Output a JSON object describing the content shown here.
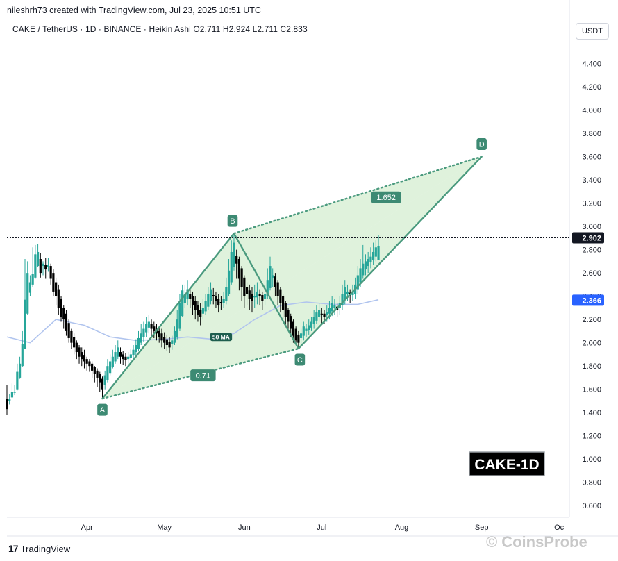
{
  "header": {
    "credit": "nileshrh73 created with TradingView.com, Jul 23, 2025 10:51 UTC",
    "symbol_line": "CAKE / TetherUS · 1D · BINANCE · Heikin Ashi  O2.711  H2.924  L2.711  C2.833"
  },
  "currency_button": "USDT",
  "footer": {
    "brand": "TradingView",
    "watermark": "CoinsProbe"
  },
  "colors": {
    "bull": "#26a69a",
    "bear": "#000000",
    "pattern": "#4a9a7e",
    "pattern_fill": "#c9e9c4",
    "ma": "#b0c4ee",
    "badge": "#3d8a73"
  },
  "chart_data": {
    "type": "candlestick",
    "title": "CAKE-1D",
    "ylim": [
      0.5,
      4.6
    ],
    "y_ticks": [
      "4.400",
      "4.200",
      "4.000",
      "3.800",
      "3.600",
      "3.400",
      "3.200",
      "3.000",
      "2.800",
      "2.600",
      "2.400",
      "2.200",
      "2.000",
      "1.800",
      "1.600",
      "1.400",
      "1.200",
      "1.000",
      "0.800",
      "0.600"
    ],
    "x_ticks": [
      "Apr",
      "May",
      "Jun",
      "Jul",
      "Aug",
      "Sep",
      "Oc"
    ],
    "x_tick_dates": [
      "2025-04-01",
      "2025-05-01",
      "2025-06-01",
      "2025-07-01",
      "2025-08-01",
      "2025-09-01",
      "2025-10-01"
    ],
    "x_range": [
      "2025-03-01",
      "2025-10-05"
    ],
    "last_price": 2.902,
    "ma_value": 2.366,
    "ma_label": "50 MA",
    "pattern": {
      "points": [
        {
          "label": "A",
          "date": "2025-04-07",
          "price": 1.52
        },
        {
          "label": "B",
          "date": "2025-05-28",
          "price": 2.94
        },
        {
          "label": "C",
          "date": "2025-06-22",
          "price": 1.95
        },
        {
          "label": "D",
          "date": "2025-09-01",
          "price": 3.6
        }
      ],
      "ratios": [
        {
          "label": "0.71",
          "date": "2025-05-16",
          "price": 1.72
        },
        {
          "label": "1.652",
          "date": "2025-07-26",
          "price": 3.25
        }
      ]
    },
    "ma_series": [
      [
        "2025-03-01",
        2.05
      ],
      [
        "2025-03-10",
        2.0
      ],
      [
        "2025-03-20",
        2.2
      ],
      [
        "2025-03-31",
        2.15
      ],
      [
        "2025-04-10",
        2.05
      ],
      [
        "2025-04-20",
        2.02
      ],
      [
        "2025-05-01",
        2.03
      ],
      [
        "2025-05-10",
        2.05
      ],
      [
        "2025-05-20",
        2.03
      ],
      [
        "2025-05-28",
        2.08
      ],
      [
        "2025-06-05",
        2.2
      ],
      [
        "2025-06-15",
        2.32
      ],
      [
        "2025-06-25",
        2.35
      ],
      [
        "2025-07-05",
        2.33
      ],
      [
        "2025-07-15",
        2.33
      ],
      [
        "2025-07-23",
        2.37
      ]
    ],
    "candles": [
      [
        "2025-03-01",
        1.52,
        1.43,
        1.64,
        1.38
      ],
      [
        "2025-03-02",
        1.5,
        1.52,
        1.56,
        1.47
      ],
      [
        "2025-03-03",
        1.53,
        1.58,
        1.65,
        1.53
      ],
      [
        "2025-03-04",
        1.57,
        1.58,
        1.64,
        1.55
      ],
      [
        "2025-03-05",
        1.6,
        1.75,
        1.82,
        1.59
      ],
      [
        "2025-03-06",
        1.7,
        1.82,
        1.88,
        1.69
      ],
      [
        "2025-03-07",
        1.8,
        1.99,
        2.1,
        1.79
      ],
      [
        "2025-03-08",
        1.95,
        2.37,
        2.72,
        1.95
      ],
      [
        "2025-03-09",
        2.25,
        2.6,
        2.7,
        2.24
      ],
      [
        "2025-03-10",
        2.43,
        2.52,
        2.58,
        2.4
      ],
      [
        "2025-03-11",
        2.5,
        2.59,
        2.82,
        2.48
      ],
      [
        "2025-03-12",
        2.56,
        2.76,
        2.84,
        2.55
      ],
      [
        "2025-03-13",
        2.66,
        2.78,
        2.85,
        2.65
      ],
      [
        "2025-03-14",
        2.72,
        2.6,
        2.77,
        2.56
      ],
      [
        "2025-03-15",
        2.66,
        2.68,
        2.7,
        2.58
      ],
      [
        "2025-03-16",
        2.67,
        2.63,
        2.73,
        2.55
      ],
      [
        "2025-03-17",
        2.65,
        2.67,
        2.73,
        2.61
      ],
      [
        "2025-03-18",
        2.66,
        2.55,
        2.68,
        2.5
      ],
      [
        "2025-03-19",
        2.6,
        2.44,
        2.63,
        2.4
      ],
      [
        "2025-03-20",
        2.52,
        2.4,
        2.56,
        2.32
      ],
      [
        "2025-03-21",
        2.46,
        2.3,
        2.5,
        2.24
      ],
      [
        "2025-03-22",
        2.38,
        2.22,
        2.4,
        2.18
      ],
      [
        "2025-03-23",
        2.3,
        2.2,
        2.32,
        2.12
      ],
      [
        "2025-03-24",
        2.25,
        2.1,
        2.28,
        2.06
      ],
      [
        "2025-03-25",
        2.17,
        2.04,
        2.2,
        2.0
      ],
      [
        "2025-03-26",
        2.1,
        2.0,
        2.12,
        1.95
      ],
      [
        "2025-03-27",
        2.05,
        1.96,
        2.08,
        1.9
      ],
      [
        "2025-03-28",
        2.0,
        1.92,
        2.02,
        1.86
      ],
      [
        "2025-03-29",
        1.96,
        1.88,
        1.98,
        1.82
      ],
      [
        "2025-03-30",
        1.92,
        1.86,
        1.96,
        1.8
      ],
      [
        "2025-03-31",
        1.89,
        1.84,
        1.94,
        1.78
      ],
      [
        "2025-04-01",
        1.86,
        1.82,
        1.88,
        1.76
      ],
      [
        "2025-04-02",
        1.84,
        1.8,
        1.86,
        1.75
      ],
      [
        "2025-04-03",
        1.82,
        1.76,
        1.84,
        1.7
      ],
      [
        "2025-04-04",
        1.79,
        1.73,
        1.8,
        1.66
      ],
      [
        "2025-04-05",
        1.76,
        1.7,
        1.78,
        1.62
      ],
      [
        "2025-04-06",
        1.73,
        1.66,
        1.75,
        1.58
      ],
      [
        "2025-04-07",
        1.69,
        1.6,
        1.71,
        1.52
      ],
      [
        "2025-04-08",
        1.64,
        1.72,
        1.76,
        1.6
      ],
      [
        "2025-04-09",
        1.68,
        1.8,
        1.86,
        1.66
      ],
      [
        "2025-04-10",
        1.74,
        1.84,
        1.9,
        1.72
      ],
      [
        "2025-04-11",
        1.79,
        1.88,
        1.94,
        1.78
      ],
      [
        "2025-04-12",
        1.84,
        1.92,
        1.98,
        1.82
      ],
      [
        "2025-04-13",
        1.88,
        1.96,
        2.02,
        1.86
      ],
      [
        "2025-04-14",
        1.92,
        1.88,
        1.96,
        1.82
      ],
      [
        "2025-04-15",
        1.9,
        1.86,
        1.93,
        1.81
      ],
      [
        "2025-04-16",
        1.88,
        1.85,
        1.91,
        1.8
      ],
      [
        "2025-04-17",
        1.86,
        1.88,
        1.92,
        1.82
      ],
      [
        "2025-04-18",
        1.87,
        1.9,
        1.95,
        1.84
      ],
      [
        "2025-04-19",
        1.89,
        1.94,
        1.98,
        1.86
      ],
      [
        "2025-04-20",
        1.92,
        1.98,
        2.03,
        1.89
      ],
      [
        "2025-04-21",
        1.95,
        2.04,
        2.1,
        1.93
      ],
      [
        "2025-04-22",
        2.0,
        2.08,
        2.16,
        1.98
      ],
      [
        "2025-04-23",
        2.05,
        2.12,
        2.18,
        2.01
      ],
      [
        "2025-04-24",
        2.09,
        2.16,
        2.22,
        2.05
      ],
      [
        "2025-04-25",
        2.13,
        2.18,
        2.24,
        2.08
      ],
      [
        "2025-04-26",
        2.16,
        2.12,
        2.2,
        2.06
      ],
      [
        "2025-04-27",
        2.14,
        2.1,
        2.18,
        2.04
      ],
      [
        "2025-04-28",
        2.12,
        2.08,
        2.16,
        2.02
      ],
      [
        "2025-04-29",
        2.1,
        2.05,
        2.13,
        2.0
      ],
      [
        "2025-04-30",
        2.08,
        2.02,
        2.12,
        1.96
      ],
      [
        "2025-05-01",
        2.05,
        2.0,
        2.09,
        1.95
      ],
      [
        "2025-05-02",
        2.03,
        1.98,
        2.07,
        1.93
      ],
      [
        "2025-05-03",
        2.01,
        1.96,
        2.05,
        1.91
      ],
      [
        "2025-05-04",
        1.99,
        2.02,
        2.06,
        1.94
      ],
      [
        "2025-05-05",
        2.0,
        2.1,
        2.14,
        1.98
      ],
      [
        "2025-05-06",
        2.05,
        2.2,
        2.28,
        2.03
      ],
      [
        "2025-05-07",
        2.12,
        2.34,
        2.42,
        2.1
      ],
      [
        "2025-05-08",
        2.23,
        2.45,
        2.5,
        2.22
      ],
      [
        "2025-05-09",
        2.34,
        2.42,
        2.5,
        2.3
      ],
      [
        "2025-05-10",
        2.38,
        2.46,
        2.54,
        2.32
      ],
      [
        "2025-05-11",
        2.42,
        2.38,
        2.48,
        2.3
      ],
      [
        "2025-05-12",
        2.4,
        2.32,
        2.44,
        2.24
      ],
      [
        "2025-05-13",
        2.36,
        2.28,
        2.4,
        2.2
      ],
      [
        "2025-05-14",
        2.32,
        2.24,
        2.36,
        2.18
      ],
      [
        "2025-05-15",
        2.28,
        2.22,
        2.34,
        2.15
      ],
      [
        "2025-05-16",
        2.25,
        2.3,
        2.38,
        2.2
      ],
      [
        "2025-05-17",
        2.27,
        2.36,
        2.42,
        2.24
      ],
      [
        "2025-05-18",
        2.31,
        2.42,
        2.48,
        2.28
      ],
      [
        "2025-05-19",
        2.36,
        2.46,
        2.52,
        2.33
      ],
      [
        "2025-05-20",
        2.41,
        2.4,
        2.47,
        2.33
      ],
      [
        "2025-05-21",
        2.4,
        2.36,
        2.44,
        2.3
      ],
      [
        "2025-05-22",
        2.38,
        2.32,
        2.42,
        2.26
      ],
      [
        "2025-05-23",
        2.35,
        2.34,
        2.4,
        2.28
      ],
      [
        "2025-05-24",
        2.34,
        2.38,
        2.44,
        2.3
      ],
      [
        "2025-05-25",
        2.36,
        2.48,
        2.56,
        2.33
      ],
      [
        "2025-05-26",
        2.42,
        2.62,
        2.72,
        2.4
      ],
      [
        "2025-05-27",
        2.52,
        2.78,
        2.88,
        2.5
      ],
      [
        "2025-05-28",
        2.65,
        2.86,
        2.94,
        2.62
      ],
      [
        "2025-05-29",
        2.75,
        2.68,
        2.8,
        2.55
      ],
      [
        "2025-05-30",
        2.72,
        2.55,
        2.74,
        2.45
      ],
      [
        "2025-05-31",
        2.64,
        2.48,
        2.66,
        2.36
      ],
      [
        "2025-06-01",
        2.56,
        2.4,
        2.58,
        2.3
      ],
      [
        "2025-06-02",
        2.48,
        2.42,
        2.52,
        2.32
      ],
      [
        "2025-06-03",
        2.45,
        2.38,
        2.5,
        2.28
      ],
      [
        "2025-06-04",
        2.42,
        2.36,
        2.48,
        2.26
      ],
      [
        "2025-06-05",
        2.39,
        2.4,
        2.5,
        2.3
      ],
      [
        "2025-06-06",
        2.39,
        2.44,
        2.52,
        2.33
      ],
      [
        "2025-06-07",
        2.42,
        2.4,
        2.46,
        2.32
      ],
      [
        "2025-06-08",
        2.41,
        2.36,
        2.44,
        2.28
      ],
      [
        "2025-06-09",
        2.38,
        2.42,
        2.5,
        2.32
      ],
      [
        "2025-06-10",
        2.4,
        2.54,
        2.64,
        2.38
      ],
      [
        "2025-06-11",
        2.47,
        2.66,
        2.74,
        2.45
      ],
      [
        "2025-06-12",
        2.56,
        2.58,
        2.64,
        2.48
      ],
      [
        "2025-06-13",
        2.57,
        2.48,
        2.6,
        2.4
      ],
      [
        "2025-06-14",
        2.52,
        2.4,
        2.54,
        2.32
      ],
      [
        "2025-06-15",
        2.46,
        2.34,
        2.48,
        2.26
      ],
      [
        "2025-06-16",
        2.4,
        2.28,
        2.42,
        2.2
      ],
      [
        "2025-06-17",
        2.34,
        2.22,
        2.36,
        2.14
      ],
      [
        "2025-06-18",
        2.28,
        2.18,
        2.3,
        2.1
      ],
      [
        "2025-06-19",
        2.23,
        2.12,
        2.25,
        2.05
      ],
      [
        "2025-06-20",
        2.18,
        2.06,
        2.2,
        2.0
      ],
      [
        "2025-06-21",
        2.12,
        2.02,
        2.14,
        1.98
      ],
      [
        "2025-06-22",
        2.07,
        2.0,
        2.1,
        1.95
      ],
      [
        "2025-06-23",
        2.04,
        2.08,
        2.12,
        1.98
      ],
      [
        "2025-06-24",
        2.06,
        2.14,
        2.18,
        2.02
      ],
      [
        "2025-06-25",
        2.1,
        2.12,
        2.16,
        2.05
      ],
      [
        "2025-06-26",
        2.11,
        2.15,
        2.2,
        2.07
      ],
      [
        "2025-06-27",
        2.13,
        2.18,
        2.22,
        2.1
      ],
      [
        "2025-06-28",
        2.16,
        2.22,
        2.28,
        2.12
      ],
      [
        "2025-06-29",
        2.19,
        2.26,
        2.32,
        2.16
      ],
      [
        "2025-06-30",
        2.22,
        2.28,
        2.34,
        2.18
      ],
      [
        "2025-07-01",
        2.25,
        2.24,
        2.3,
        2.16
      ],
      [
        "2025-07-02",
        2.25,
        2.22,
        2.28,
        2.16
      ],
      [
        "2025-07-03",
        2.24,
        2.26,
        2.32,
        2.18
      ],
      [
        "2025-07-04",
        2.25,
        2.3,
        2.36,
        2.2
      ],
      [
        "2025-07-05",
        2.27,
        2.34,
        2.4,
        2.23
      ],
      [
        "2025-07-06",
        2.3,
        2.32,
        2.38,
        2.24
      ],
      [
        "2025-07-07",
        2.31,
        2.28,
        2.34,
        2.22
      ],
      [
        "2025-07-08",
        2.3,
        2.34,
        2.4,
        2.24
      ],
      [
        "2025-07-09",
        2.32,
        2.42,
        2.5,
        2.28
      ],
      [
        "2025-07-10",
        2.37,
        2.48,
        2.54,
        2.33
      ],
      [
        "2025-07-11",
        2.42,
        2.44,
        2.5,
        2.36
      ],
      [
        "2025-07-12",
        2.43,
        2.4,
        2.46,
        2.34
      ],
      [
        "2025-07-13",
        2.41,
        2.44,
        2.5,
        2.36
      ],
      [
        "2025-07-14",
        2.42,
        2.5,
        2.56,
        2.38
      ],
      [
        "2025-07-15",
        2.46,
        2.58,
        2.66,
        2.42
      ],
      [
        "2025-07-16",
        2.52,
        2.64,
        2.72,
        2.48
      ],
      [
        "2025-07-17",
        2.58,
        2.68,
        2.84,
        2.55
      ],
      [
        "2025-07-18",
        2.63,
        2.7,
        2.76,
        2.58
      ],
      [
        "2025-07-19",
        2.66,
        2.72,
        2.78,
        2.6
      ],
      [
        "2025-07-20",
        2.69,
        2.74,
        2.82,
        2.64
      ],
      [
        "2025-07-21",
        2.71,
        2.78,
        2.86,
        2.67
      ],
      [
        "2025-07-22",
        2.74,
        2.82,
        2.88,
        2.7
      ],
      [
        "2025-07-23",
        2.71,
        2.833,
        2.924,
        2.711
      ]
    ]
  }
}
